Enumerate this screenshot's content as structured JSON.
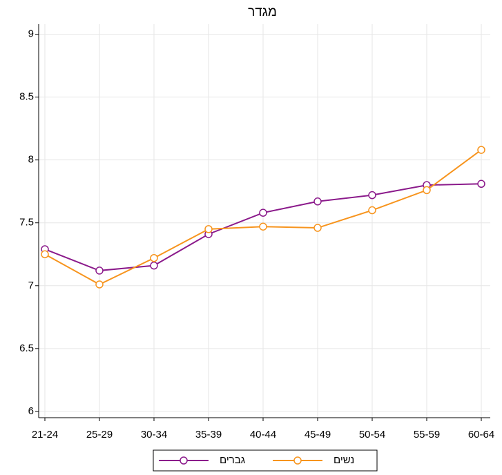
{
  "chart_data": {
    "type": "line",
    "title": "מגדר",
    "categories": [
      "21-24",
      "25-29",
      "30-34",
      "35-39",
      "40-44",
      "45-49",
      "50-54",
      "55-59",
      "60-64"
    ],
    "series": [
      {
        "name": "גברים",
        "color": "#8b1a8b",
        "values": [
          7.29,
          7.12,
          7.16,
          7.41,
          7.58,
          7.67,
          7.72,
          7.8,
          7.81
        ]
      },
      {
        "name": "נשים",
        "color": "#f7941d",
        "values": [
          7.25,
          7.01,
          7.22,
          7.45,
          7.47,
          7.46,
          7.6,
          7.76,
          8.08
        ]
      }
    ],
    "ylim": [
      5.95,
      9.08
    ],
    "yticks": [
      6,
      6.5,
      7,
      7.5,
      8,
      8.5,
      9
    ],
    "grid": true,
    "legend": "bottom"
  }
}
